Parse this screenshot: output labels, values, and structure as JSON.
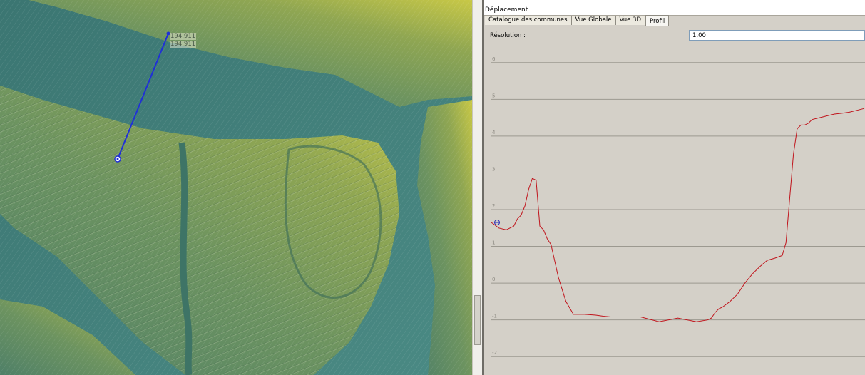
{
  "map": {
    "profile_line": {
      "start_label": "194,911",
      "end_label": "194,911"
    },
    "colors": {
      "river": "#3f7c78",
      "land_low": "#5f8c63",
      "land_high": "#c9c744",
      "profile_line": "#1f2fd8"
    }
  },
  "panel": {
    "title": "Déplacement",
    "tabs": [
      {
        "label": "Catalogue des communes",
        "active": false
      },
      {
        "label": "Vue Globale",
        "active": false
      },
      {
        "label": "Vue 3D",
        "active": false
      },
      {
        "label": "Profil",
        "active": true
      }
    ],
    "resolution": {
      "label": "Résolution :",
      "value": "1,00"
    }
  },
  "chart_data": {
    "type": "line",
    "title": "",
    "xlabel": "",
    "ylabel": "",
    "ylim": [
      -2.5,
      6.5
    ],
    "y_ticks": [
      "6",
      "5",
      "4",
      "3",
      "2",
      "1",
      "0",
      "-1",
      "-2"
    ],
    "grid": true,
    "line_color": "#c0141c",
    "series": [
      {
        "x": [
          0,
          0.02,
          0.04,
          0.06,
          0.07,
          0.08,
          0.09,
          0.1,
          0.11,
          0.12,
          0.13,
          0.14,
          0.15,
          0.16,
          0.17,
          0.18,
          0.2,
          0.22,
          0.25,
          0.28,
          0.3,
          0.32,
          0.35,
          0.4,
          0.45,
          0.5,
          0.55,
          0.58,
          0.59,
          0.6,
          0.61,
          0.62,
          0.64,
          0.66,
          0.68,
          0.7,
          0.72,
          0.74,
          0.76,
          0.78,
          0.79,
          0.8,
          0.81,
          0.82,
          0.83,
          0.84,
          0.85,
          0.86,
          0.88,
          0.9,
          0.92,
          0.94,
          0.96,
          0.98,
          1.0
        ],
        "y": [
          1.65,
          1.5,
          1.45,
          1.55,
          1.75,
          1.85,
          2.1,
          2.55,
          2.85,
          2.8,
          1.55,
          1.45,
          1.2,
          1.05,
          0.6,
          0.15,
          -0.5,
          -0.85,
          -0.85,
          -0.87,
          -0.9,
          -0.92,
          -0.92,
          -0.92,
          -1.05,
          -0.95,
          -1.05,
          -1.0,
          -0.95,
          -0.8,
          -0.7,
          -0.65,
          -0.5,
          -0.3,
          0.0,
          0.25,
          0.45,
          0.62,
          0.68,
          0.75,
          1.1,
          2.3,
          3.5,
          4.2,
          4.3,
          4.3,
          4.35,
          4.45,
          4.5,
          4.55,
          4.6,
          4.62,
          4.65,
          4.7,
          4.75
        ]
      }
    ],
    "start_marker": {
      "x": 0,
      "y": 1.65
    }
  }
}
